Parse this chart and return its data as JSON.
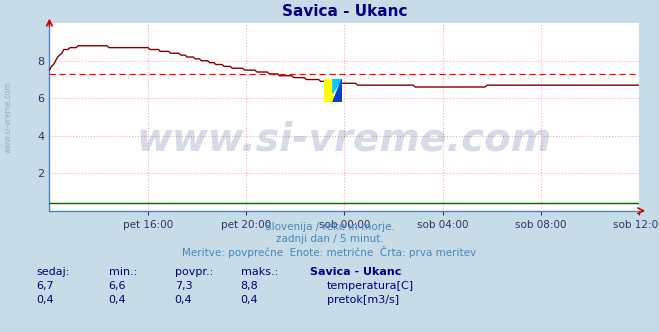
{
  "title": "Savica - Ukanc",
  "title_color": "#000080",
  "background_color": "#c8dce8",
  "plot_bg_color": "#ffffff",
  "grid_color": "#ffaaaa",
  "xlabel_ticks": [
    "pet 16:00",
    "pet 20:00",
    "sob 00:00",
    "sob 04:00",
    "sob 08:00",
    "sob 12:00"
  ],
  "ylim": [
    0,
    10
  ],
  "yticks": [
    2,
    4,
    6,
    8
  ],
  "temp_color": "#800000",
  "flow_color": "#006600",
  "avg_line_color": "#ff0000",
  "avg_value": 7.3,
  "watermark_text": "www.si-vreme.com",
  "watermark_color": "#1a3a8a",
  "watermark_alpha": 0.18,
  "watermark_fontsize": 28,
  "subtitle1": "Slovenija / reke in morje.",
  "subtitle2": "zadnji dan / 5 minut.",
  "subtitle3": "Meritve: povprečne  Enote: metrične  Črta: prva meritev",
  "subtitle_color": "#4488bb",
  "table_header": [
    "sedaj:",
    "min.:",
    "povpr.:",
    "maks.:",
    "Savica - Ukanc"
  ],
  "table_row1": [
    "6,7",
    "6,6",
    "7,3",
    "8,8"
  ],
  "table_row2": [
    "0,4",
    "0,4",
    "0,4",
    "0,4"
  ],
  "legend1": "temperatura[C]",
  "legend2": "pretok[m3/s]",
  "ylabel_text": "www.si-vreme.com",
  "ylabel_color": "#7090b0",
  "n_points": 288,
  "flow_value": 0.4,
  "spine_color": "#4488bb",
  "tick_color": "#333366",
  "axis_arrow_color": "#cc0000"
}
